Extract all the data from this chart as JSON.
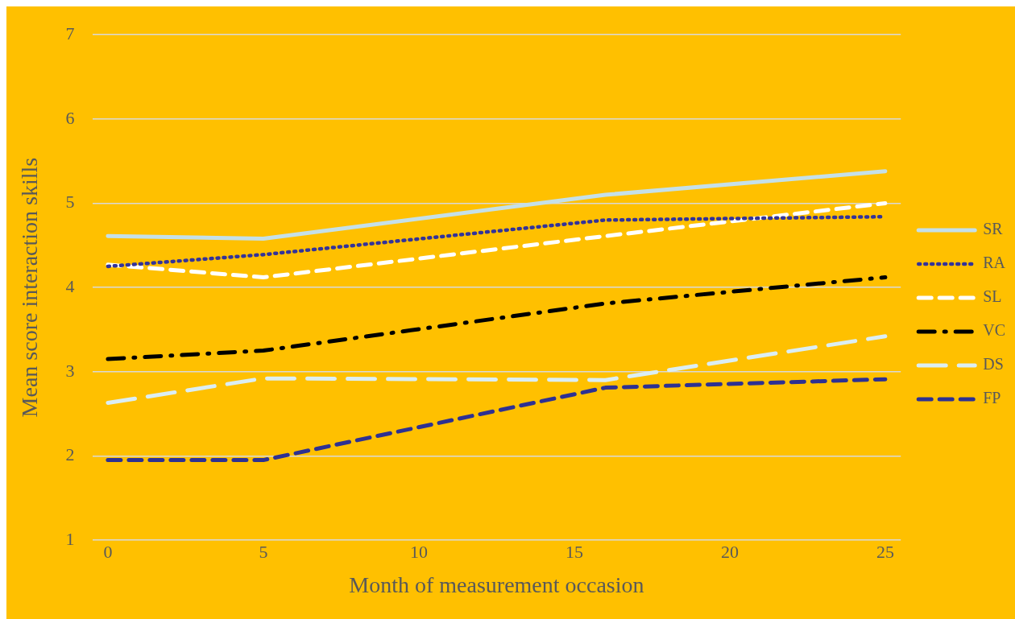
{
  "chart_data": {
    "type": "line",
    "xlabel": "Month of measurement occasion",
    "ylabel": "Mean score interaction skills",
    "x": [
      0,
      5,
      16,
      25
    ],
    "xlim": [
      -0.5,
      25.5
    ],
    "xticks": [
      0,
      5,
      10,
      15,
      20,
      25
    ],
    "ylim": [
      1,
      7
    ],
    "yticks": [
      1,
      2,
      3,
      4,
      5,
      6,
      7
    ],
    "grid": "y",
    "legend": "right",
    "marker": "none",
    "series": [
      {
        "name": "SR",
        "color": "#c5e0e8",
        "line_style": "solid",
        "values": [
          4.61,
          4.58,
          5.1,
          5.38
        ]
      },
      {
        "name": "RA",
        "color": "#333399",
        "line_style": "dotted",
        "values": [
          4.25,
          4.39,
          4.8,
          4.84
        ]
      },
      {
        "name": "SL",
        "color": "#ffffff",
        "line_style": "dashed",
        "values": [
          4.27,
          4.12,
          4.61,
          5.0
        ]
      },
      {
        "name": "VC",
        "color": "#000000",
        "line_style": "dashdot",
        "values": [
          3.15,
          3.25,
          3.81,
          4.12
        ]
      },
      {
        "name": "DS",
        "color": "#dbeef3",
        "line_style": "longdash",
        "values": [
          2.63,
          2.92,
          2.9,
          3.42
        ]
      },
      {
        "name": "FP",
        "color": "#2e3192",
        "line_style": "dashed",
        "values": [
          1.95,
          1.95,
          2.81,
          2.91
        ]
      }
    ]
  }
}
